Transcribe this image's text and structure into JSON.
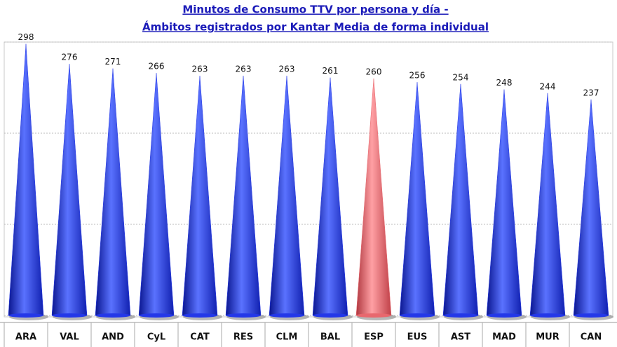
{
  "chart_data": {
    "type": "cone",
    "title": [
      "Minutos de Consumo TTV por persona y día -",
      "Ámbitos registrados por Kantar Media de forma individual"
    ],
    "categories": [
      "ARA",
      "VAL",
      "AND",
      "CyL",
      "CAT",
      "RES",
      "CLM",
      "BAL",
      "ESP",
      "EUS",
      "AST",
      "MAD",
      "MUR",
      "CAN"
    ],
    "values": [
      298,
      276,
      271,
      266,
      263,
      263,
      263,
      261,
      260,
      256,
      254,
      248,
      244,
      237
    ],
    "colors": [
      "#2438e8",
      "#2438e8",
      "#2438e8",
      "#2438e8",
      "#2438e8",
      "#2438e8",
      "#2438e8",
      "#2438e8",
      "#e8686e",
      "#2438e8",
      "#2438e8",
      "#2438e8",
      "#2438e8",
      "#2438e8"
    ],
    "ylim": [
      0,
      300
    ],
    "yticks": [
      0,
      100,
      200,
      300
    ],
    "grid": true
  }
}
